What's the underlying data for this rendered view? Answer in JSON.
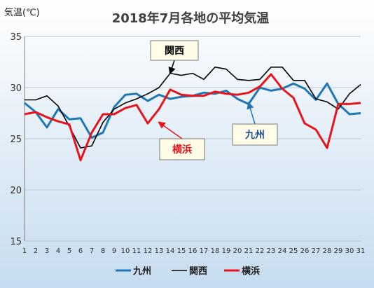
{
  "chart_data": {
    "type": "line",
    "title": "2018年7月各地の平均気温",
    "unit_label": "気温(℃)",
    "xlabel": "",
    "ylabel": "気温(℃)",
    "x": [
      1,
      2,
      3,
      4,
      5,
      6,
      7,
      8,
      9,
      10,
      11,
      12,
      13,
      14,
      15,
      16,
      17,
      18,
      19,
      20,
      21,
      22,
      23,
      24,
      25,
      26,
      27,
      28,
      29,
      30,
      31
    ],
    "x_tick_labels": [
      "1",
      "2",
      "3",
      "4",
      "5",
      "6",
      "7",
      "8",
      "9",
      "10",
      "11",
      "12",
      "13",
      "14",
      "15",
      "16",
      "17",
      "18",
      "19",
      "20",
      "21",
      "22",
      "23",
      "24",
      "25",
      "26",
      "27",
      "28",
      "29",
      "30",
      "31"
    ],
    "ylim": [
      15,
      35
    ],
    "y_ticks": [
      15,
      20,
      25,
      30,
      35
    ],
    "y_tick_labels": [
      "15",
      "20",
      "25",
      "30",
      "35"
    ],
    "grid": "horizontal",
    "legend_position": "bottom",
    "series": [
      {
        "name": "九州",
        "color": "#1f77b4",
        "values": [
          28.5,
          27.6,
          26.1,
          27.9,
          26.9,
          27.0,
          25.1,
          25.6,
          28.1,
          29.3,
          29.4,
          28.7,
          29.3,
          28.9,
          29.1,
          29.2,
          29.5,
          29.4,
          29.7,
          28.9,
          28.4,
          30.0,
          29.7,
          29.9,
          30.4,
          29.9,
          28.8,
          30.4,
          28.4,
          27.4,
          27.5
        ]
      },
      {
        "name": "関西",
        "color": "#000000",
        "values": [
          28.8,
          28.8,
          29.2,
          28.2,
          26.2,
          24.1,
          24.3,
          26.6,
          27.9,
          28.5,
          28.9,
          29.4,
          30.0,
          31.4,
          31.2,
          31.4,
          30.8,
          32.0,
          31.8,
          30.8,
          30.7,
          30.8,
          32.0,
          32.0,
          30.7,
          30.7,
          28.9,
          28.6,
          27.9,
          29.4,
          30.3
        ]
      },
      {
        "name": "横浜",
        "color": "#e8141c",
        "values": [
          27.4,
          27.6,
          27.1,
          26.7,
          26.4,
          22.9,
          25.6,
          27.4,
          27.4,
          28.0,
          28.3,
          26.5,
          27.9,
          29.8,
          29.3,
          29.2,
          29.2,
          29.6,
          29.4,
          29.3,
          29.5,
          30.1,
          31.3,
          29.9,
          29.0,
          26.5,
          25.9,
          24.1,
          28.4,
          28.4,
          28.5
        ]
      }
    ],
    "callouts": [
      {
        "series": "関西",
        "text": "関西",
        "text_color": "#000000",
        "arrow_color": "#000000",
        "anchor_x": 14,
        "anchor_y": 31.4
      },
      {
        "series": "横浜",
        "text": "横浜",
        "text_color": "#e8141c",
        "arrow_color": "#e8141c",
        "anchor_x": 13,
        "anchor_y": 26.6
      },
      {
        "series": "九州",
        "text": "九州",
        "text_color": "#1f4e9c",
        "arrow_color": "#1f77b4",
        "anchor_x": 21,
        "anchor_y": 28.5
      }
    ],
    "colors": {
      "background_top": "#ffffff",
      "background_bottom": "#c6dcef",
      "grid": "#b8c6d6",
      "axis": "#808080",
      "callout_fill": "#fffde8",
      "callout_stroke": "#7a7a7a"
    }
  }
}
